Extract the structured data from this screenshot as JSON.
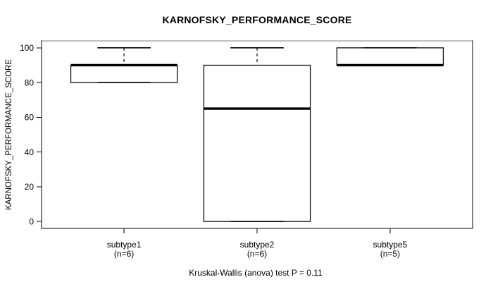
{
  "chart_data": {
    "type": "boxplot",
    "title": "KARNOFSKY_PERFORMANCE_SCORE",
    "ylabel": "KARNOFSKY_PERFORMANCE_SCORE",
    "xlabel": "",
    "subtitle": "Kruskal-Wallis (anova) test P = 0.11",
    "ylim": [
      0,
      100
    ],
    "yticks": [
      0,
      20,
      40,
      60,
      80,
      100
    ],
    "grid": false,
    "categories": [
      "subtype1",
      "subtype2",
      "subtype5"
    ],
    "category_sublabels": [
      "(n=6)",
      "(n=6)",
      "(n=5)"
    ],
    "series": [
      {
        "name": "subtype1",
        "n": 6,
        "whisker_low": 80,
        "q1": 80,
        "median": 90,
        "q3": 90,
        "whisker_high": 100,
        "outliers": []
      },
      {
        "name": "subtype2",
        "n": 6,
        "whisker_low": 0,
        "q1": 0,
        "median": 65,
        "q3": 90,
        "whisker_high": 100,
        "outliers": []
      },
      {
        "name": "subtype5",
        "n": 5,
        "whisker_low": 90,
        "q1": 90,
        "median": 90,
        "q3": 100,
        "whisker_high": 100,
        "outliers": []
      }
    ],
    "line_color": "#000000",
    "top_border_color": "#808080",
    "background": "#ffffff"
  }
}
